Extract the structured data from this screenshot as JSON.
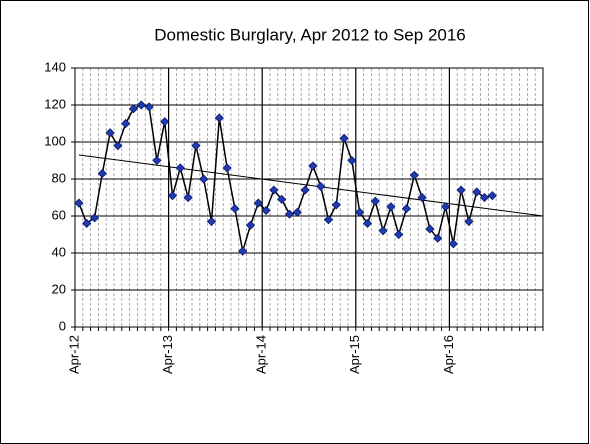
{
  "chart_data": {
    "type": "line",
    "title": "Domestic Burglary, Apr 2012 to Sep  2016",
    "categories": [
      "Apr-12",
      null,
      null,
      null,
      null,
      null,
      null,
      null,
      null,
      null,
      null,
      null,
      "Apr-13",
      null,
      null,
      null,
      null,
      null,
      null,
      null,
      null,
      null,
      null,
      null,
      "Apr-14",
      null,
      null,
      null,
      null,
      null,
      null,
      null,
      null,
      null,
      null,
      null,
      "Apr-15",
      null,
      null,
      null,
      null,
      null,
      null,
      null,
      null,
      null,
      null,
      null,
      "Apr-16",
      null,
      null,
      null,
      null,
      null,
      null,
      null,
      null,
      null,
      null,
      null
    ],
    "series": [
      {
        "color": "#1f3bb3",
        "values": [
          67,
          56,
          59,
          83,
          105,
          98,
          110,
          118,
          120,
          119,
          90,
          111,
          71,
          86,
          70,
          98,
          80,
          57,
          113,
          86,
          64,
          41,
          55,
          67,
          63,
          74,
          69,
          61,
          62,
          74,
          87,
          76,
          58,
          66,
          102,
          90,
          62,
          56,
          68,
          52,
          65,
          50,
          64,
          82,
          70,
          53,
          48,
          65,
          45,
          74,
          57,
          73,
          70,
          71,
          null,
          null,
          null,
          null,
          null,
          null
        ]
      }
    ],
    "trendline": {
      "values": [
        93,
        60
      ],
      "color": "#000000"
    },
    "ylim": [
      0,
      140
    ],
    "yticks": [
      0,
      20,
      40,
      60,
      80,
      100,
      120,
      140
    ],
    "grid": true
  }
}
